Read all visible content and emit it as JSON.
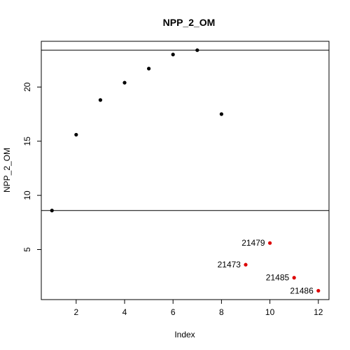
{
  "chart_data": {
    "type": "scatter",
    "title": "NPP_2_OM",
    "xlabel": "Index",
    "ylabel": "NPP_2_OM",
    "xlim": [
      0.56,
      12.44
    ],
    "ylim": [
      0.38,
      24.22
    ],
    "x_ticks": [
      2,
      4,
      6,
      8,
      10,
      12
    ],
    "y_ticks": [
      5,
      10,
      15,
      20
    ],
    "grid": false,
    "legend": "none",
    "series": [
      {
        "color": "#000000",
        "points": [
          {
            "x": 1,
            "y": 8.6
          },
          {
            "x": 2,
            "y": 15.6
          },
          {
            "x": 3,
            "y": 18.8
          },
          {
            "x": 4,
            "y": 20.4
          },
          {
            "x": 5,
            "y": 21.7
          },
          {
            "x": 6,
            "y": 23.0
          },
          {
            "x": 7,
            "y": 23.4
          },
          {
            "x": 8,
            "y": 17.5
          }
        ]
      },
      {
        "color": "#dd0000",
        "points": [
          {
            "x": 9,
            "y": 3.6,
            "label": "21473"
          },
          {
            "x": 10,
            "y": 5.6,
            "label": "21479"
          },
          {
            "x": 11,
            "y": 2.4,
            "label": "21485"
          },
          {
            "x": 12,
            "y": 1.2,
            "label": "21486"
          }
        ]
      }
    ],
    "hlines": [
      23.4,
      8.6
    ]
  }
}
